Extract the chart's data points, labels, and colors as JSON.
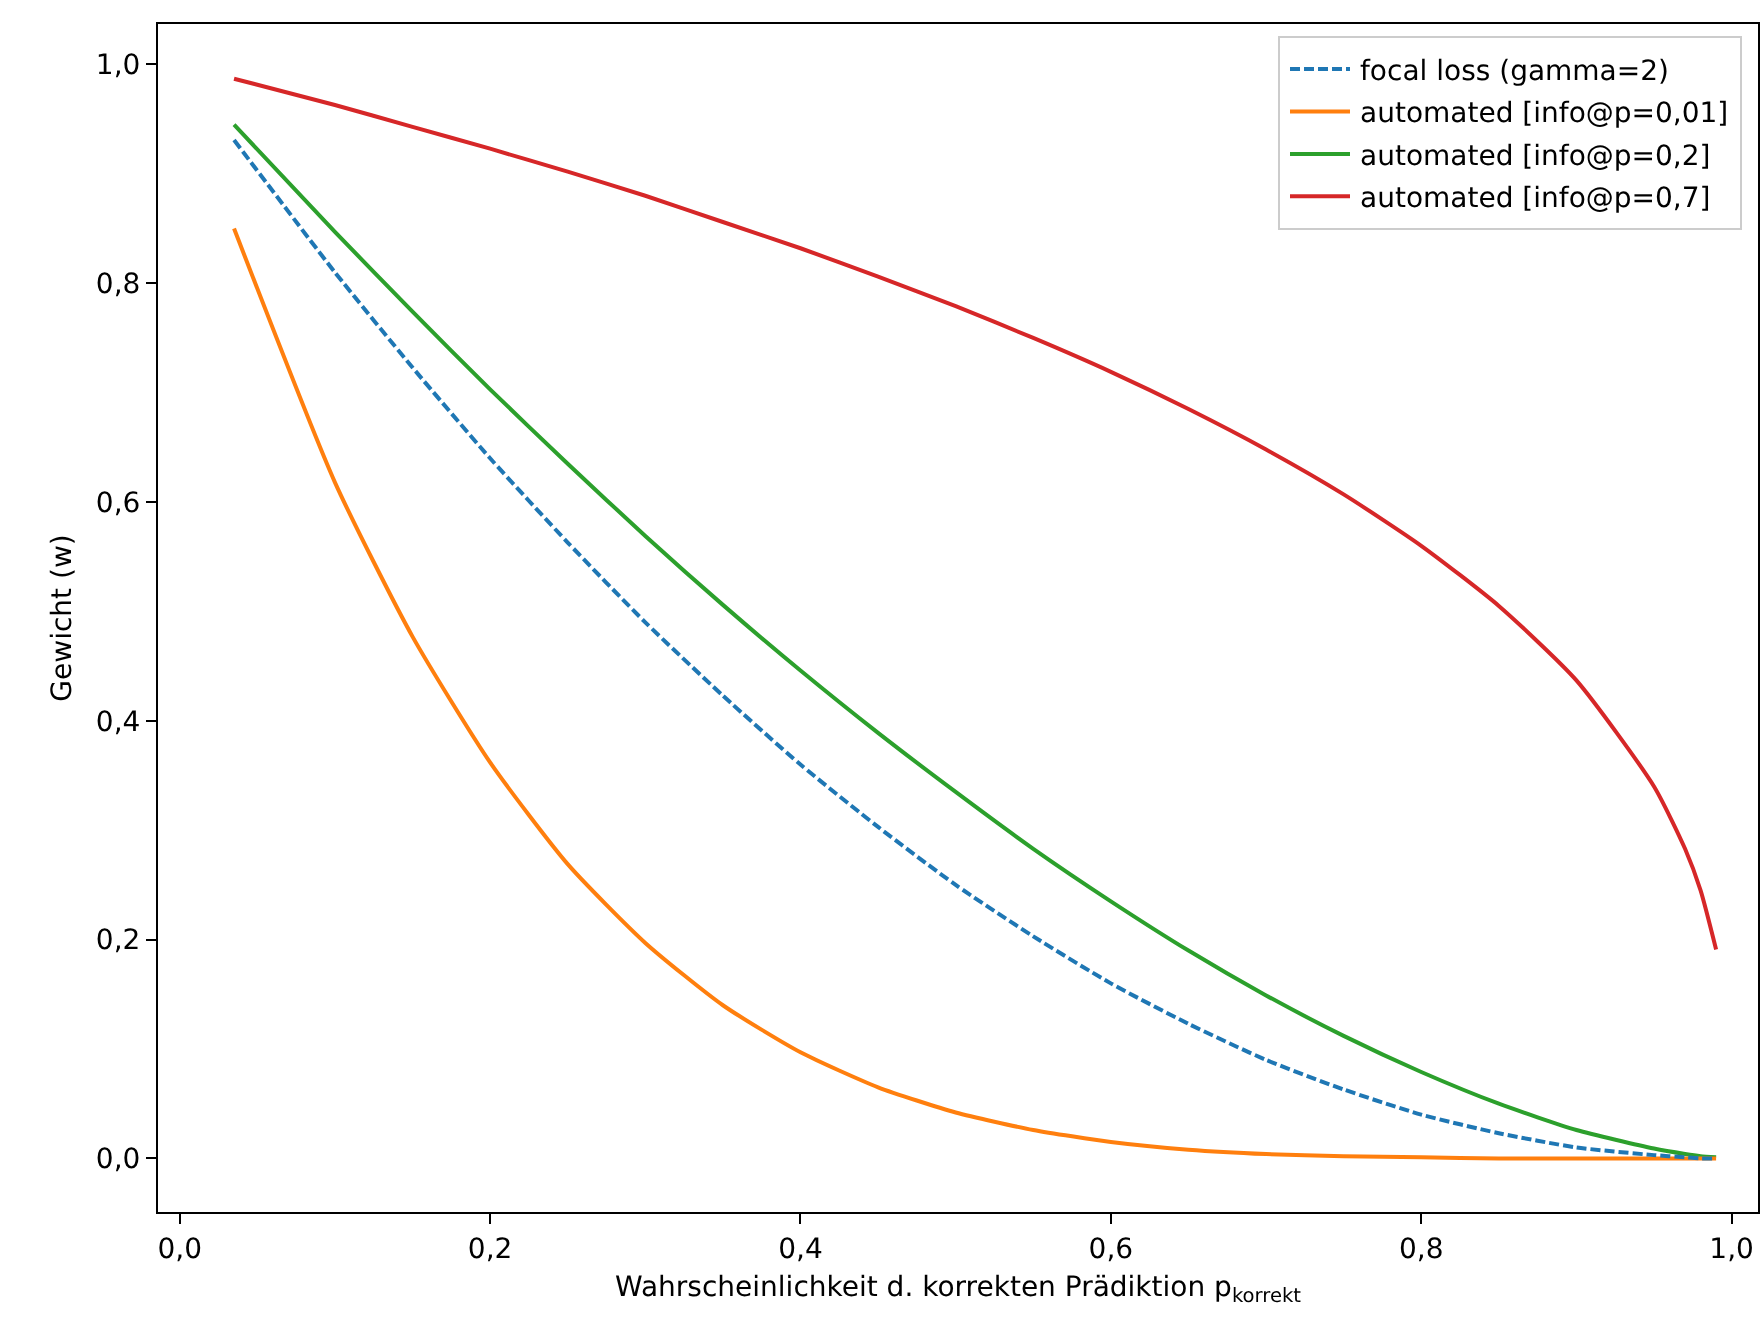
{
  "chart_data": {
    "type": "line",
    "xlabel": "Wahrscheinlichkeit d. korrekten Prädiktion p$_{korrekt}$",
    "ylabel": "Gewicht (w)",
    "x": [
      0.035,
      0.1,
      0.15,
      0.2,
      0.25,
      0.3,
      0.35,
      0.4,
      0.45,
      0.5,
      0.55,
      0.6,
      0.65,
      0.7,
      0.75,
      0.8,
      0.85,
      0.9,
      0.95,
      0.97,
      0.98,
      0.99
    ],
    "series": [
      {
        "name": "focal loss (gamma=2)",
        "color": "#1f77b4",
        "line_style": "dashed",
        "values": [
          0.931,
          0.81,
          0.723,
          0.64,
          0.563,
          0.49,
          0.423,
          0.36,
          0.303,
          0.25,
          0.203,
          0.16,
          0.123,
          0.09,
          0.063,
          0.04,
          0.023,
          0.01,
          0.003,
          0.001,
          0,
          0
        ]
      },
      {
        "name": "automated [info@p=0,01]",
        "color": "#ff7f0e",
        "line_style": "solid",
        "values": [
          0.85,
          0.618,
          0.477,
          0.362,
          0.269,
          0.197,
          0.14,
          0.097,
          0.065,
          0.042,
          0.026,
          0.015,
          0.008,
          0.004,
          0.002,
          0.001,
          0,
          0,
          0,
          0,
          0,
          0
        ]
      },
      {
        "name": "automated [info@p=0,2]",
        "color": "#2ca02c",
        "line_style": "solid",
        "values": [
          0.945,
          0.847,
          0.774,
          0.703,
          0.635,
          0.569,
          0.506,
          0.446,
          0.389,
          0.335,
          0.283,
          0.235,
          0.19,
          0.149,
          0.112,
          0.079,
          0.05,
          0.026,
          0.009,
          0.004,
          0.002,
          0.001
        ]
      },
      {
        "name": "automated [info@p=0,7]",
        "color": "#d62728",
        "line_style": "solid",
        "values": [
          0.987,
          0.963,
          0.943,
          0.923,
          0.902,
          0.88,
          0.856,
          0.832,
          0.806,
          0.779,
          0.75,
          0.719,
          0.685,
          0.648,
          0.607,
          0.56,
          0.505,
          0.437,
          0.34,
          0.283,
          0.245,
          0.191
        ]
      }
    ],
    "xlim": [
      -0.014,
      1.017
    ],
    "ylim": [
      -0.049,
      1.037
    ],
    "xticks": [
      {
        "value": 0,
        "label": "0,0"
      },
      {
        "value": 0.2,
        "label": "0,2"
      },
      {
        "value": 0.4,
        "label": "0,4"
      },
      {
        "value": 0.6,
        "label": "0,6"
      },
      {
        "value": 0.8,
        "label": "0,8"
      },
      {
        "value": 1,
        "label": "1,0"
      }
    ],
    "yticks": [
      {
        "value": 0,
        "label": "0,0"
      },
      {
        "value": 0.2,
        "label": "0,2"
      },
      {
        "value": 0.4,
        "label": "0,4"
      },
      {
        "value": 0.6,
        "label": "0,6"
      },
      {
        "value": 0.8,
        "label": "0,8"
      },
      {
        "value": 1,
        "label": "1,0"
      }
    ],
    "grid": false,
    "legend": "top right"
  }
}
